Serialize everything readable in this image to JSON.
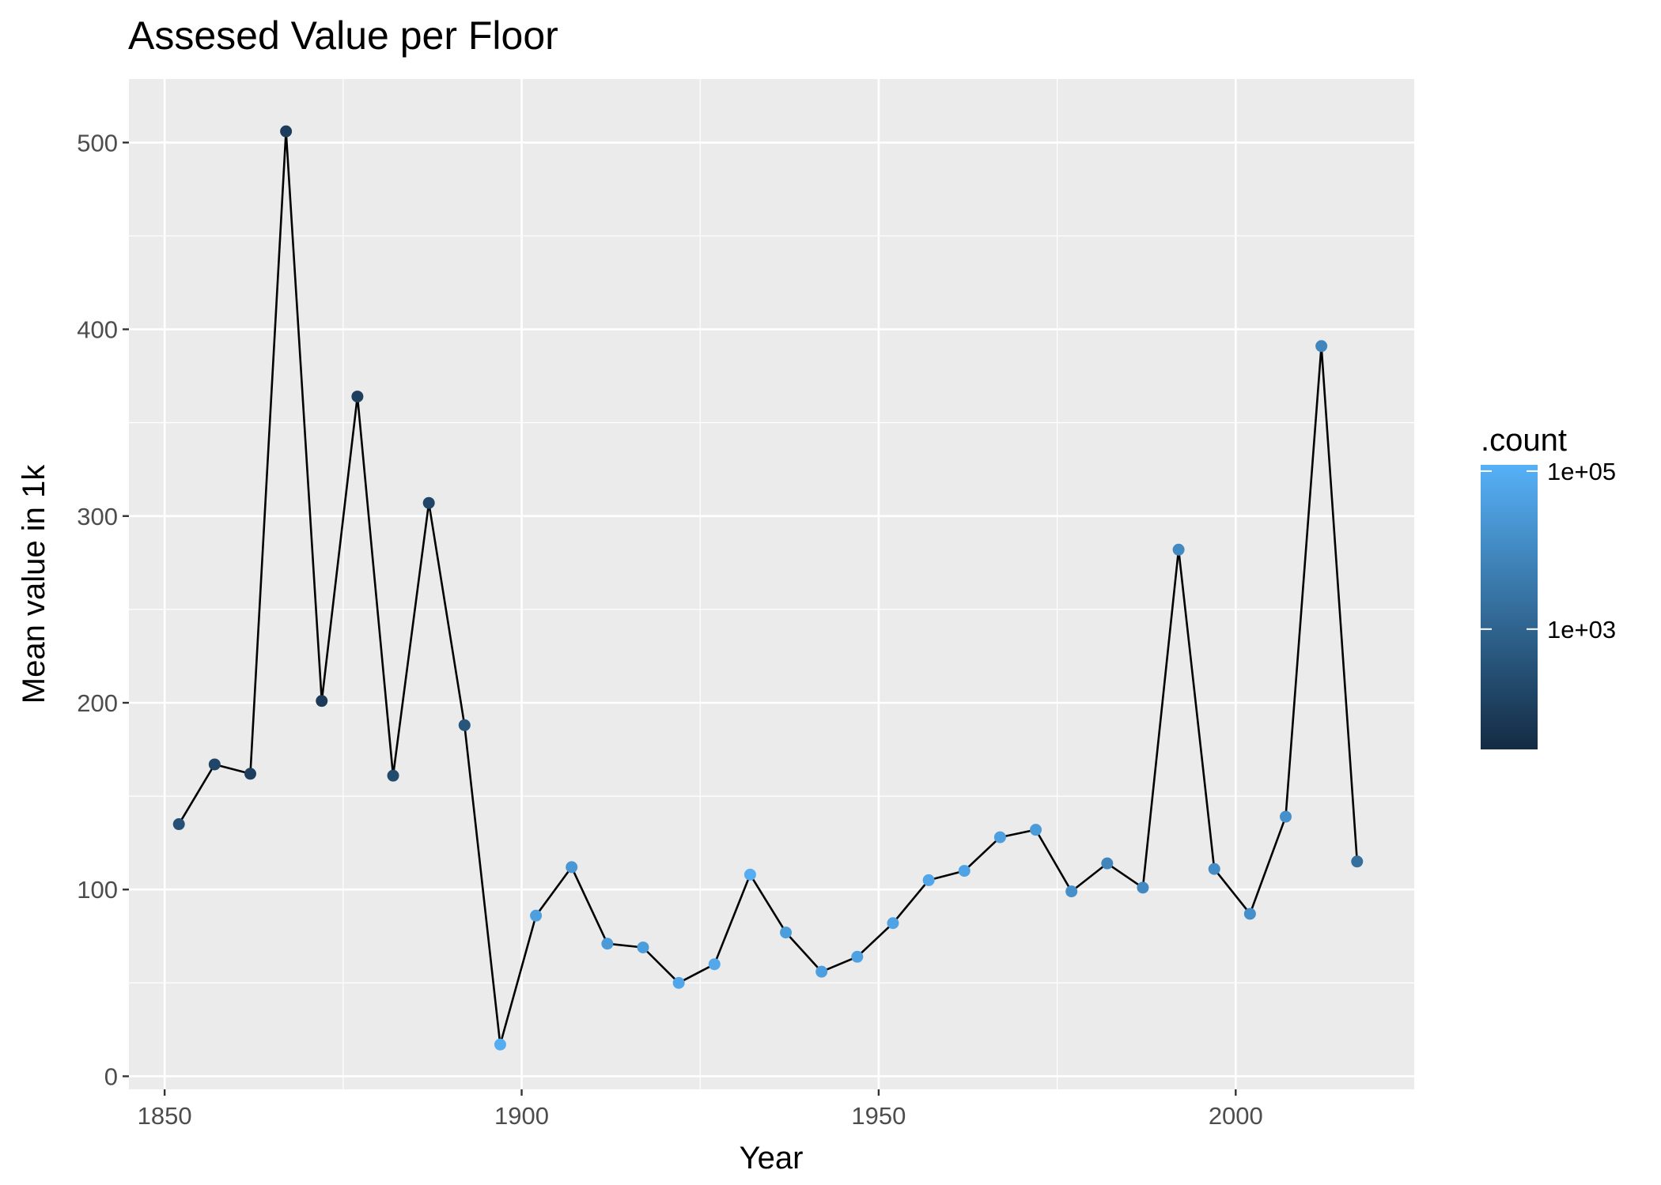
{
  "chart_data": {
    "type": "line",
    "title": "Assesed Value per Floor",
    "xlabel": "Year",
    "ylabel": "Mean value in 1k",
    "xlim": [
      1845,
      2025
    ],
    "ylim": [
      -7,
      534
    ],
    "x_ticks": [
      1850,
      1900,
      1950,
      2000
    ],
    "y_ticks": [
      0,
      100,
      200,
      300,
      400,
      500
    ],
    "grid": true,
    "legend": {
      "title": ".count",
      "position": "right",
      "scale": "log10",
      "min_count": 30,
      "max_count": 120000,
      "low_color": "#132B43",
      "high_color": "#56B1F7",
      "breaks": [
        {
          "label": "1e+05",
          "value": 100000
        },
        {
          "label": "1e+03",
          "value": 1000
        }
      ]
    },
    "line_color": "#000000",
    "points": [
      {
        "x": 1852,
        "y": 135,
        "count": 300
      },
      {
        "x": 1857,
        "y": 167,
        "count": 150
      },
      {
        "x": 1862,
        "y": 162,
        "count": 100
      },
      {
        "x": 1867,
        "y": 506,
        "count": 90
      },
      {
        "x": 1872,
        "y": 201,
        "count": 80
      },
      {
        "x": 1877,
        "y": 364,
        "count": 100
      },
      {
        "x": 1882,
        "y": 161,
        "count": 200
      },
      {
        "x": 1887,
        "y": 307,
        "count": 150
      },
      {
        "x": 1892,
        "y": 188,
        "count": 400
      },
      {
        "x": 1897,
        "y": 17,
        "count": 90000
      },
      {
        "x": 1902,
        "y": 86,
        "count": 40000
      },
      {
        "x": 1907,
        "y": 112,
        "count": 25000
      },
      {
        "x": 1912,
        "y": 71,
        "count": 30000
      },
      {
        "x": 1917,
        "y": 69,
        "count": 35000
      },
      {
        "x": 1922,
        "y": 50,
        "count": 60000
      },
      {
        "x": 1927,
        "y": 60,
        "count": 70000
      },
      {
        "x": 1932,
        "y": 108,
        "count": 100000
      },
      {
        "x": 1937,
        "y": 77,
        "count": 35000
      },
      {
        "x": 1942,
        "y": 56,
        "count": 40000
      },
      {
        "x": 1947,
        "y": 64,
        "count": 45000
      },
      {
        "x": 1952,
        "y": 82,
        "count": 50000
      },
      {
        "x": 1957,
        "y": 105,
        "count": 60000
      },
      {
        "x": 1962,
        "y": 110,
        "count": 50000
      },
      {
        "x": 1967,
        "y": 128,
        "count": 40000
      },
      {
        "x": 1972,
        "y": 132,
        "count": 30000
      },
      {
        "x": 1977,
        "y": 99,
        "count": 15000
      },
      {
        "x": 1982,
        "y": 114,
        "count": 8000
      },
      {
        "x": 1987,
        "y": 101,
        "count": 10000
      },
      {
        "x": 1992,
        "y": 282,
        "count": 10000
      },
      {
        "x": 1997,
        "y": 111,
        "count": 12000
      },
      {
        "x": 2002,
        "y": 87,
        "count": 15000
      },
      {
        "x": 2007,
        "y": 139,
        "count": 15000
      },
      {
        "x": 2012,
        "y": 391,
        "count": 8000
      },
      {
        "x": 2017,
        "y": 115,
        "count": 2000
      }
    ]
  }
}
